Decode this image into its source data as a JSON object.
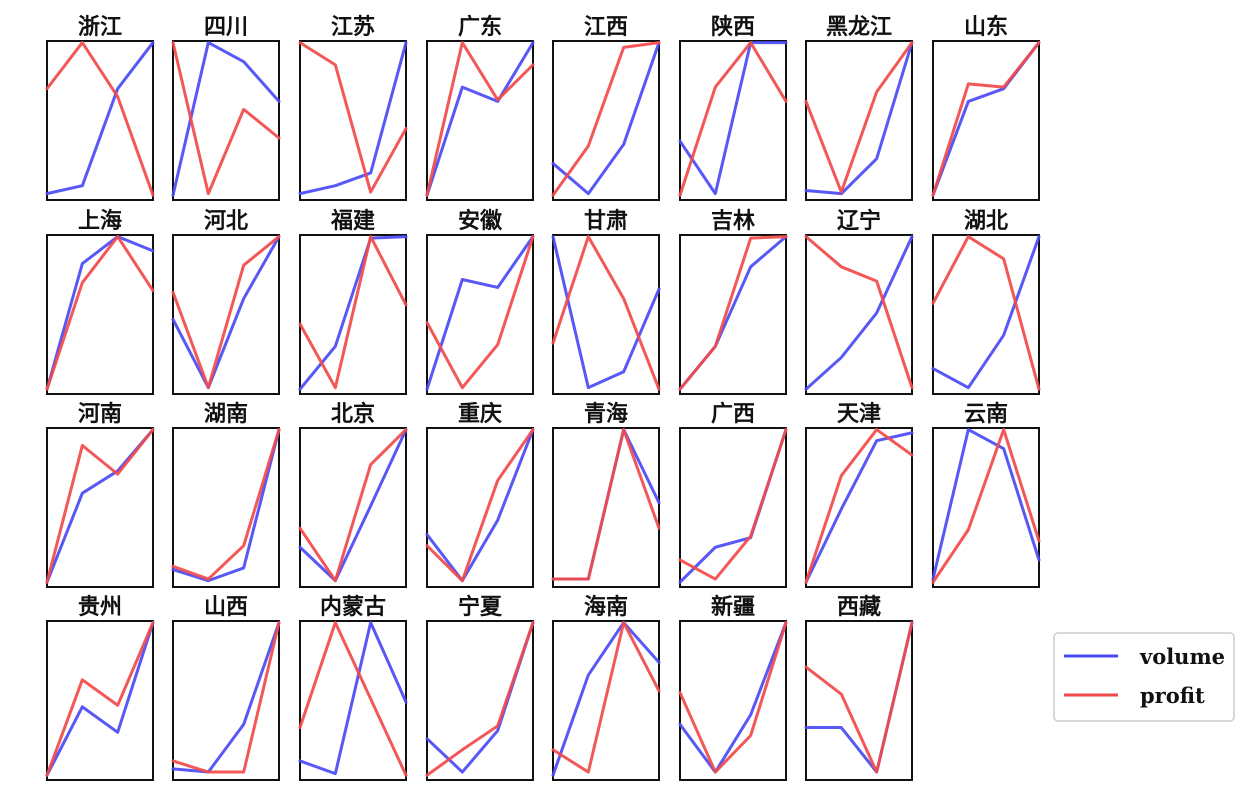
{
  "chart_data": {
    "type": "line",
    "legend": {
      "placement": "right",
      "entries": [
        {
          "name": "volume",
          "color": "#4a4af5"
        },
        {
          "name": "profit",
          "color": "#f24a4a"
        }
      ]
    },
    "panels": [
      {
        "title": "浙江",
        "volume": [
          0.04,
          0.09,
          0.7,
          0.99
        ],
        "profit": [
          0.7,
          0.99,
          0.65,
          0.03
        ]
      },
      {
        "title": "四川",
        "volume": [
          0.03,
          0.99,
          0.87,
          0.62
        ],
        "profit": [
          0.99,
          0.04,
          0.57,
          0.39
        ]
      },
      {
        "title": "江苏",
        "volume": [
          0.04,
          0.09,
          0.17,
          0.99
        ],
        "profit": [
          0.99,
          0.85,
          0.05,
          0.45
        ]
      },
      {
        "title": "广东",
        "volume": [
          0.03,
          0.71,
          0.62,
          0.99
        ],
        "profit": [
          0.03,
          0.99,
          0.63,
          0.85
        ]
      },
      {
        "title": "江西",
        "volume": [
          0.23,
          0.04,
          0.35,
          0.99
        ],
        "profit": [
          0.03,
          0.34,
          0.96,
          0.99
        ]
      },
      {
        "title": "陕西",
        "volume": [
          0.37,
          0.04,
          0.99,
          0.99
        ],
        "profit": [
          0.03,
          0.71,
          0.99,
          0.62
        ]
      },
      {
        "title": "黑龙江",
        "volume": [
          0.06,
          0.04,
          0.26,
          0.99
        ],
        "profit": [
          0.62,
          0.05,
          0.68,
          0.99
        ]
      },
      {
        "title": "山东",
        "volume": [
          0.03,
          0.62,
          0.7,
          0.99
        ],
        "profit": [
          0.03,
          0.73,
          0.71,
          0.99
        ]
      },
      {
        "title": "上海",
        "volume": [
          0.03,
          0.82,
          0.99,
          0.9
        ],
        "profit": [
          0.03,
          0.7,
          0.99,
          0.65
        ]
      },
      {
        "title": "河北",
        "volume": [
          0.47,
          0.04,
          0.6,
          0.99
        ],
        "profit": [
          0.64,
          0.04,
          0.81,
          0.99
        ]
      },
      {
        "title": "福建",
        "volume": [
          0.03,
          0.3,
          0.98,
          0.99
        ],
        "profit": [
          0.44,
          0.04,
          0.99,
          0.56
        ]
      },
      {
        "title": "安徽",
        "volume": [
          0.03,
          0.72,
          0.67,
          0.99
        ],
        "profit": [
          0.45,
          0.04,
          0.31,
          0.99
        ]
      },
      {
        "title": "甘肃",
        "volume": [
          0.99,
          0.04,
          0.14,
          0.66
        ],
        "profit": [
          0.32,
          0.99,
          0.6,
          0.03
        ]
      },
      {
        "title": "吉林",
        "volume": [
          0.03,
          0.3,
          0.8,
          0.99
        ],
        "profit": [
          0.03,
          0.3,
          0.98,
          0.99
        ]
      },
      {
        "title": "辽宁",
        "volume": [
          0.03,
          0.23,
          0.51,
          0.99
        ],
        "profit": [
          0.99,
          0.8,
          0.71,
          0.04
        ]
      },
      {
        "title": "湖北",
        "volume": [
          0.16,
          0.04,
          0.37,
          0.99
        ],
        "profit": [
          0.57,
          0.99,
          0.85,
          0.03
        ]
      },
      {
        "title": "河南",
        "volume": [
          0.03,
          0.59,
          0.73,
          0.99
        ],
        "profit": [
          0.03,
          0.89,
          0.71,
          0.99
        ]
      },
      {
        "title": "湖南",
        "volume": [
          0.11,
          0.04,
          0.12,
          0.99
        ],
        "profit": [
          0.13,
          0.05,
          0.26,
          0.99
        ]
      },
      {
        "title": "北京",
        "volume": [
          0.25,
          0.04,
          0.51,
          0.99
        ],
        "profit": [
          0.37,
          0.04,
          0.77,
          0.99
        ]
      },
      {
        "title": "重庆",
        "volume": [
          0.33,
          0.04,
          0.42,
          0.99
        ],
        "profit": [
          0.26,
          0.04,
          0.67,
          0.99
        ]
      },
      {
        "title": "青海",
        "volume": [
          0.05,
          0.05,
          0.99,
          0.53
        ],
        "profit": [
          0.05,
          0.05,
          0.99,
          0.37
        ]
      },
      {
        "title": "广西",
        "volume": [
          0.03,
          0.25,
          0.31,
          0.99
        ],
        "profit": [
          0.17,
          0.05,
          0.32,
          0.99
        ]
      },
      {
        "title": "天津",
        "volume": [
          0.03,
          0.49,
          0.92,
          0.97
        ],
        "profit": [
          0.03,
          0.7,
          0.99,
          0.83
        ]
      },
      {
        "title": "云南",
        "volume": [
          0.05,
          0.99,
          0.87,
          0.17
        ],
        "profit": [
          0.03,
          0.36,
          0.99,
          0.29
        ]
      },
      {
        "title": "贵州",
        "volume": [
          0.03,
          0.46,
          0.3,
          0.99
        ],
        "profit": [
          0.03,
          0.63,
          0.47,
          0.99
        ]
      },
      {
        "title": "山西",
        "volume": [
          0.07,
          0.05,
          0.35,
          0.99
        ],
        "profit": [
          0.12,
          0.05,
          0.05,
          0.99
        ]
      },
      {
        "title": "内蒙古",
        "volume": [
          0.12,
          0.04,
          0.99,
          0.49
        ],
        "profit": [
          0.33,
          0.99,
          0.51,
          0.03
        ]
      },
      {
        "title": "宁夏",
        "volume": [
          0.26,
          0.05,
          0.31,
          0.99
        ],
        "profit": [
          0.03,
          0.19,
          0.34,
          0.99
        ]
      },
      {
        "title": "海南",
        "volume": [
          0.03,
          0.66,
          0.99,
          0.74
        ],
        "profit": [
          0.19,
          0.05,
          0.99,
          0.56
        ]
      },
      {
        "title": "新疆",
        "volume": [
          0.35,
          0.05,
          0.41,
          0.99
        ],
        "profit": [
          0.55,
          0.05,
          0.28,
          0.99
        ]
      },
      {
        "title": "西藏",
        "volume": [
          0.33,
          0.33,
          0.05,
          0.99
        ],
        "profit": [
          0.71,
          0.54,
          0.05,
          0.99
        ]
      }
    ],
    "x": [
      1,
      2,
      3,
      4
    ],
    "ylim": [
      0,
      1
    ],
    "grid": false,
    "axes_ticks_visible": false
  }
}
